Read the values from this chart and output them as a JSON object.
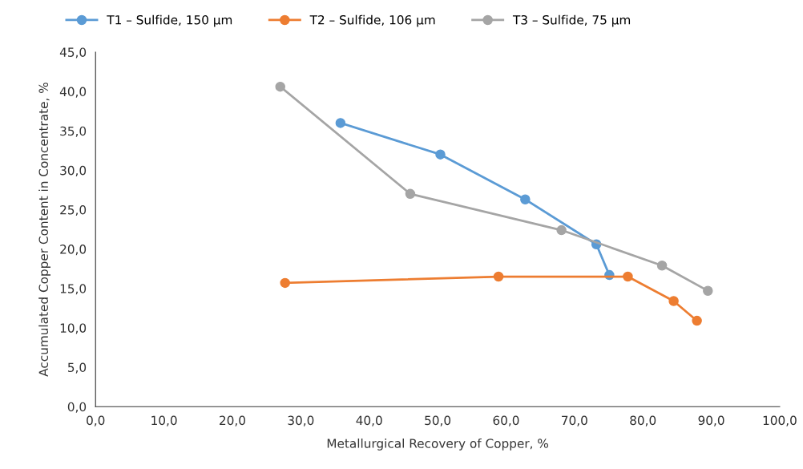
{
  "chart_data": {
    "type": "line",
    "xlabel": "Metallurgical Recovery of Copper, %",
    "ylabel": "Accumulated Copper Content in Concentrate, %",
    "series": [
      {
        "name": "T1 – Sulfide, 150 µm",
        "color": "#5b9bd5",
        "x": [
          35.8,
          50.4,
          62.8,
          73.2,
          75.1
        ],
        "values": [
          36.0,
          32.0,
          26.3,
          20.6,
          16.7
        ]
      },
      {
        "name": "T2 – Sulfide, 106 µm",
        "color": "#ed7d31",
        "x": [
          27.7,
          58.9,
          77.8,
          84.5,
          87.9
        ],
        "values": [
          15.7,
          16.5,
          16.5,
          13.4,
          10.9
        ]
      },
      {
        "name": "T3 – Sulfide, 75 µm",
        "color": "#a5a5a5",
        "x": [
          27.0,
          46.0,
          68.1,
          82.8,
          89.5
        ],
        "values": [
          40.6,
          27.0,
          22.4,
          17.9,
          14.7
        ]
      }
    ],
    "xlim": [
      0,
      100
    ],
    "ylim": [
      0,
      45
    ],
    "xticks": [
      {
        "value": 0,
        "label": "0,0"
      },
      {
        "value": 10,
        "label": "10,0"
      },
      {
        "value": 20,
        "label": "20,0"
      },
      {
        "value": 30,
        "label": "30,0"
      },
      {
        "value": 40,
        "label": "40,0"
      },
      {
        "value": 50,
        "label": "50,0"
      },
      {
        "value": 60,
        "label": "60,0"
      },
      {
        "value": 70,
        "label": "70,0"
      },
      {
        "value": 80,
        "label": "80,0"
      },
      {
        "value": 90,
        "label": "90,0"
      },
      {
        "value": 100,
        "label": "100,0"
      }
    ],
    "yticks": [
      {
        "value": 0,
        "label": "0,0"
      },
      {
        "value": 5,
        "label": "5,0"
      },
      {
        "value": 10,
        "label": "10,0"
      },
      {
        "value": 15,
        "label": "15,0"
      },
      {
        "value": 20,
        "label": "20,0"
      },
      {
        "value": 25,
        "label": "25,0"
      },
      {
        "value": 30,
        "label": "30,0"
      },
      {
        "value": 35,
        "label": "35,0"
      },
      {
        "value": 40,
        "label": "40,0"
      },
      {
        "value": 45,
        "label": "45,0"
      }
    ],
    "grid": false,
    "legend": "top",
    "marker": "circle",
    "line_style": "solid"
  }
}
